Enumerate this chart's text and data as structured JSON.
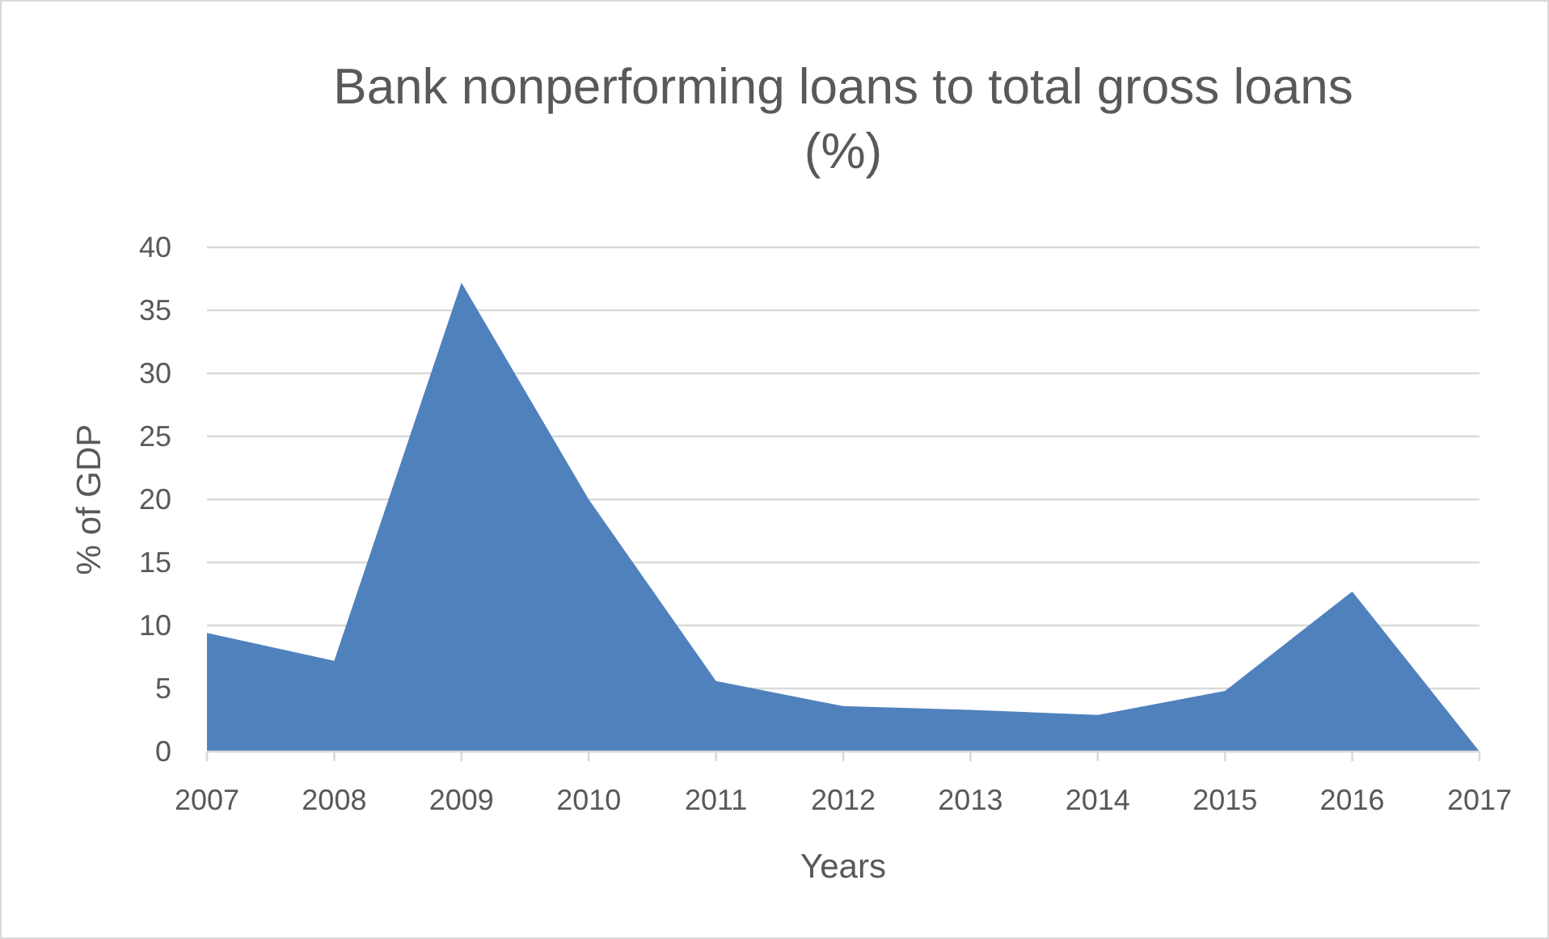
{
  "chart_data": {
    "type": "area",
    "title": "Bank nonperforming loans to total gross loans (%)",
    "xlabel": "Years",
    "ylabel": "% of GDP",
    "categories": [
      "2007",
      "2008",
      "2009",
      "2010",
      "2011",
      "2012",
      "2013",
      "2014",
      "2015",
      "2016",
      "2017"
    ],
    "series": [
      {
        "color": "#4f81bd",
        "values": [
          9.4,
          7.2,
          37.2,
          20,
          5.6,
          3.6,
          3.3,
          2.9,
          4.8,
          12.7,
          0
        ]
      }
    ],
    "ylim": [
      0,
      40
    ],
    "yticks": [
      0,
      5,
      10,
      15,
      20,
      25,
      30,
      35,
      40
    ],
    "grid": "y"
  }
}
